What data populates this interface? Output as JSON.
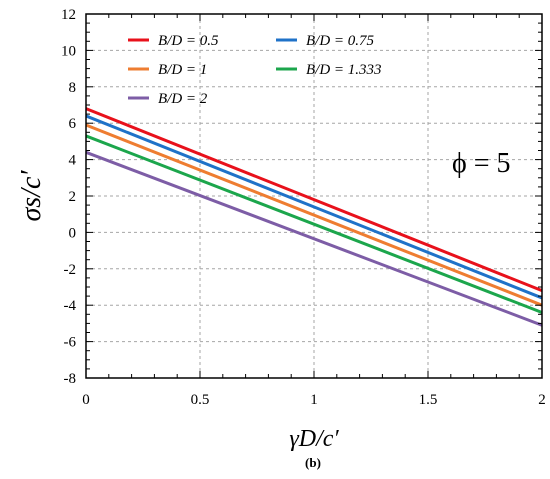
{
  "chart_data": {
    "type": "line",
    "xlabel": "γD/c′",
    "ylabel": "σs/c′",
    "xlim": [
      0,
      2
    ],
    "ylim": [
      -8,
      12
    ],
    "x_ticks": [
      "0",
      "0.5",
      "1",
      "1.5",
      "2"
    ],
    "y_ticks": [
      "-8",
      "-6",
      "-4",
      "-2",
      "0",
      "2",
      "4",
      "6",
      "8",
      "10",
      "12"
    ],
    "grid": true,
    "legend_position": "top-left",
    "annotation": "ϕ = 5",
    "caption": "(b)",
    "series": [
      {
        "name": "B/D = 0.5",
        "color": "#e8111b",
        "x": [
          0,
          2
        ],
        "y": [
          6.8,
          -3.2
        ]
      },
      {
        "name": "B/D = 0.75",
        "color": "#1f72c8",
        "x": [
          0,
          2
        ],
        "y": [
          6.4,
          -3.6
        ]
      },
      {
        "name": "B/D = 1",
        "color": "#ee7d31",
        "x": [
          0,
          2
        ],
        "y": [
          5.9,
          -4.0
        ]
      },
      {
        "name": "B/D = 1.333",
        "color": "#1ca64c",
        "x": [
          0,
          2
        ],
        "y": [
          5.3,
          -4.4
        ]
      },
      {
        "name": "B/D = 2",
        "color": "#7d5da6",
        "x": [
          0,
          2
        ],
        "y": [
          4.4,
          -5.1
        ]
      }
    ]
  }
}
